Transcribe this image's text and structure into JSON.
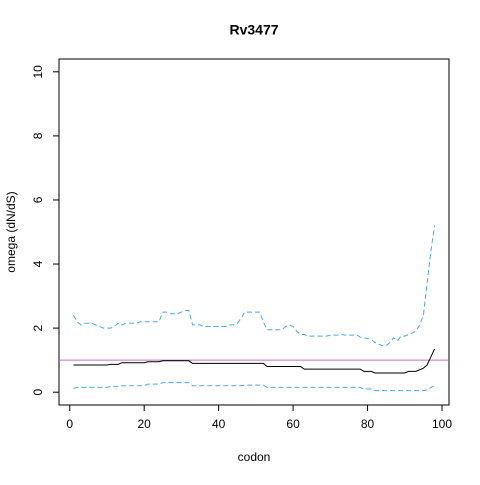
{
  "chart_data": {
    "type": "line",
    "title": "Rv3477",
    "x_label": "codon",
    "y_label": "omega (dN/dS)",
    "x": [
      1,
      2,
      3,
      4,
      5,
      6,
      7,
      8,
      9,
      10,
      11,
      12,
      13,
      14,
      15,
      16,
      17,
      18,
      19,
      20,
      21,
      22,
      23,
      24,
      25,
      26,
      27,
      28,
      29,
      30,
      31,
      32,
      33,
      34,
      35,
      36,
      37,
      38,
      39,
      40,
      41,
      42,
      43,
      44,
      45,
      46,
      47,
      48,
      49,
      50,
      51,
      52,
      53,
      54,
      55,
      56,
      57,
      58,
      59,
      60,
      61,
      62,
      63,
      64,
      65,
      66,
      67,
      68,
      69,
      70,
      71,
      72,
      73,
      74,
      75,
      76,
      77,
      78,
      79,
      80,
      81,
      82,
      83,
      84,
      85,
      86,
      87,
      88,
      89,
      90,
      91,
      92,
      93,
      94,
      95,
      96,
      97,
      98
    ],
    "series": [
      {
        "color": "#000000",
        "dash": false,
        "values": [
          0.85,
          0.85,
          0.85,
          0.85,
          0.85,
          0.85,
          0.85,
          0.85,
          0.85,
          0.85,
          0.87,
          0.87,
          0.87,
          0.92,
          0.92,
          0.92,
          0.92,
          0.92,
          0.92,
          0.92,
          0.95,
          0.95,
          0.95,
          0.95,
          0.98,
          0.98,
          0.98,
          0.98,
          0.98,
          0.98,
          0.98,
          0.98,
          0.9,
          0.9,
          0.9,
          0.9,
          0.9,
          0.9,
          0.9,
          0.9,
          0.9,
          0.9,
          0.9,
          0.9,
          0.9,
          0.9,
          0.9,
          0.9,
          0.9,
          0.9,
          0.9,
          0.9,
          0.8,
          0.8,
          0.8,
          0.8,
          0.8,
          0.8,
          0.8,
          0.8,
          0.8,
          0.8,
          0.72,
          0.72,
          0.72,
          0.72,
          0.72,
          0.72,
          0.72,
          0.72,
          0.72,
          0.72,
          0.72,
          0.72,
          0.72,
          0.72,
          0.72,
          0.72,
          0.65,
          0.65,
          0.65,
          0.6,
          0.6,
          0.6,
          0.6,
          0.6,
          0.6,
          0.6,
          0.6,
          0.6,
          0.65,
          0.65,
          0.65,
          0.7,
          0.75,
          0.85,
          1.1,
          1.35
        ]
      },
      {
        "color": "#4aa8e0",
        "dash": true,
        "values": [
          2.4,
          2.2,
          2.1,
          2.15,
          2.15,
          2.15,
          2.1,
          2.05,
          2.0,
          2.0,
          2.0,
          2.05,
          2.15,
          2.1,
          2.15,
          2.15,
          2.15,
          2.15,
          2.2,
          2.2,
          2.2,
          2.2,
          2.2,
          2.2,
          2.5,
          2.5,
          2.45,
          2.45,
          2.45,
          2.5,
          2.55,
          2.55,
          2.1,
          2.1,
          2.1,
          2.05,
          2.05,
          2.05,
          2.05,
          2.05,
          2.05,
          2.05,
          2.1,
          2.1,
          2.15,
          2.3,
          2.5,
          2.5,
          2.5,
          2.5,
          2.5,
          2.2,
          1.95,
          1.95,
          1.95,
          1.95,
          1.95,
          2.05,
          2.1,
          2.05,
          1.9,
          1.8,
          1.8,
          1.75,
          1.75,
          1.75,
          1.75,
          1.75,
          1.75,
          1.78,
          1.78,
          1.78,
          1.8,
          1.78,
          1.78,
          1.78,
          1.8,
          1.72,
          1.7,
          1.68,
          1.65,
          1.55,
          1.5,
          1.45,
          1.45,
          1.55,
          1.7,
          1.6,
          1.75,
          1.75,
          1.8,
          1.85,
          1.9,
          2.1,
          2.4,
          3.4,
          4.4,
          5.2
        ]
      },
      {
        "color": "#4aa8e0",
        "dash": true,
        "values": [
          0.12,
          0.15,
          0.15,
          0.15,
          0.15,
          0.15,
          0.15,
          0.15,
          0.15,
          0.15,
          0.18,
          0.18,
          0.18,
          0.2,
          0.2,
          0.2,
          0.2,
          0.2,
          0.2,
          0.2,
          0.25,
          0.25,
          0.25,
          0.25,
          0.3,
          0.3,
          0.3,
          0.3,
          0.3,
          0.3,
          0.3,
          0.3,
          0.2,
          0.2,
          0.2,
          0.2,
          0.2,
          0.2,
          0.2,
          0.2,
          0.2,
          0.2,
          0.2,
          0.2,
          0.2,
          0.2,
          0.22,
          0.22,
          0.22,
          0.22,
          0.22,
          0.22,
          0.15,
          0.15,
          0.15,
          0.15,
          0.15,
          0.15,
          0.15,
          0.15,
          0.15,
          0.15,
          0.15,
          0.15,
          0.15,
          0.15,
          0.15,
          0.15,
          0.15,
          0.15,
          0.15,
          0.15,
          0.15,
          0.15,
          0.15,
          0.15,
          0.15,
          0.15,
          0.1,
          0.1,
          0.1,
          0.05,
          0.05,
          0.05,
          0.05,
          0.05,
          0.05,
          0.05,
          0.05,
          0.05,
          0.05,
          0.05,
          0.05,
          0.05,
          0.05,
          0.07,
          0.15,
          0.2
        ]
      }
    ],
    "hline": 1,
    "hline_color": "#c070c0",
    "xlim": [
      -2.88,
      101.88
    ],
    "xticks": [
      0,
      20,
      40,
      60,
      80,
      100
    ],
    "ylim": [
      -0.4,
      10.4
    ],
    "yticks": [
      0,
      2,
      4,
      6,
      8,
      10
    ]
  }
}
